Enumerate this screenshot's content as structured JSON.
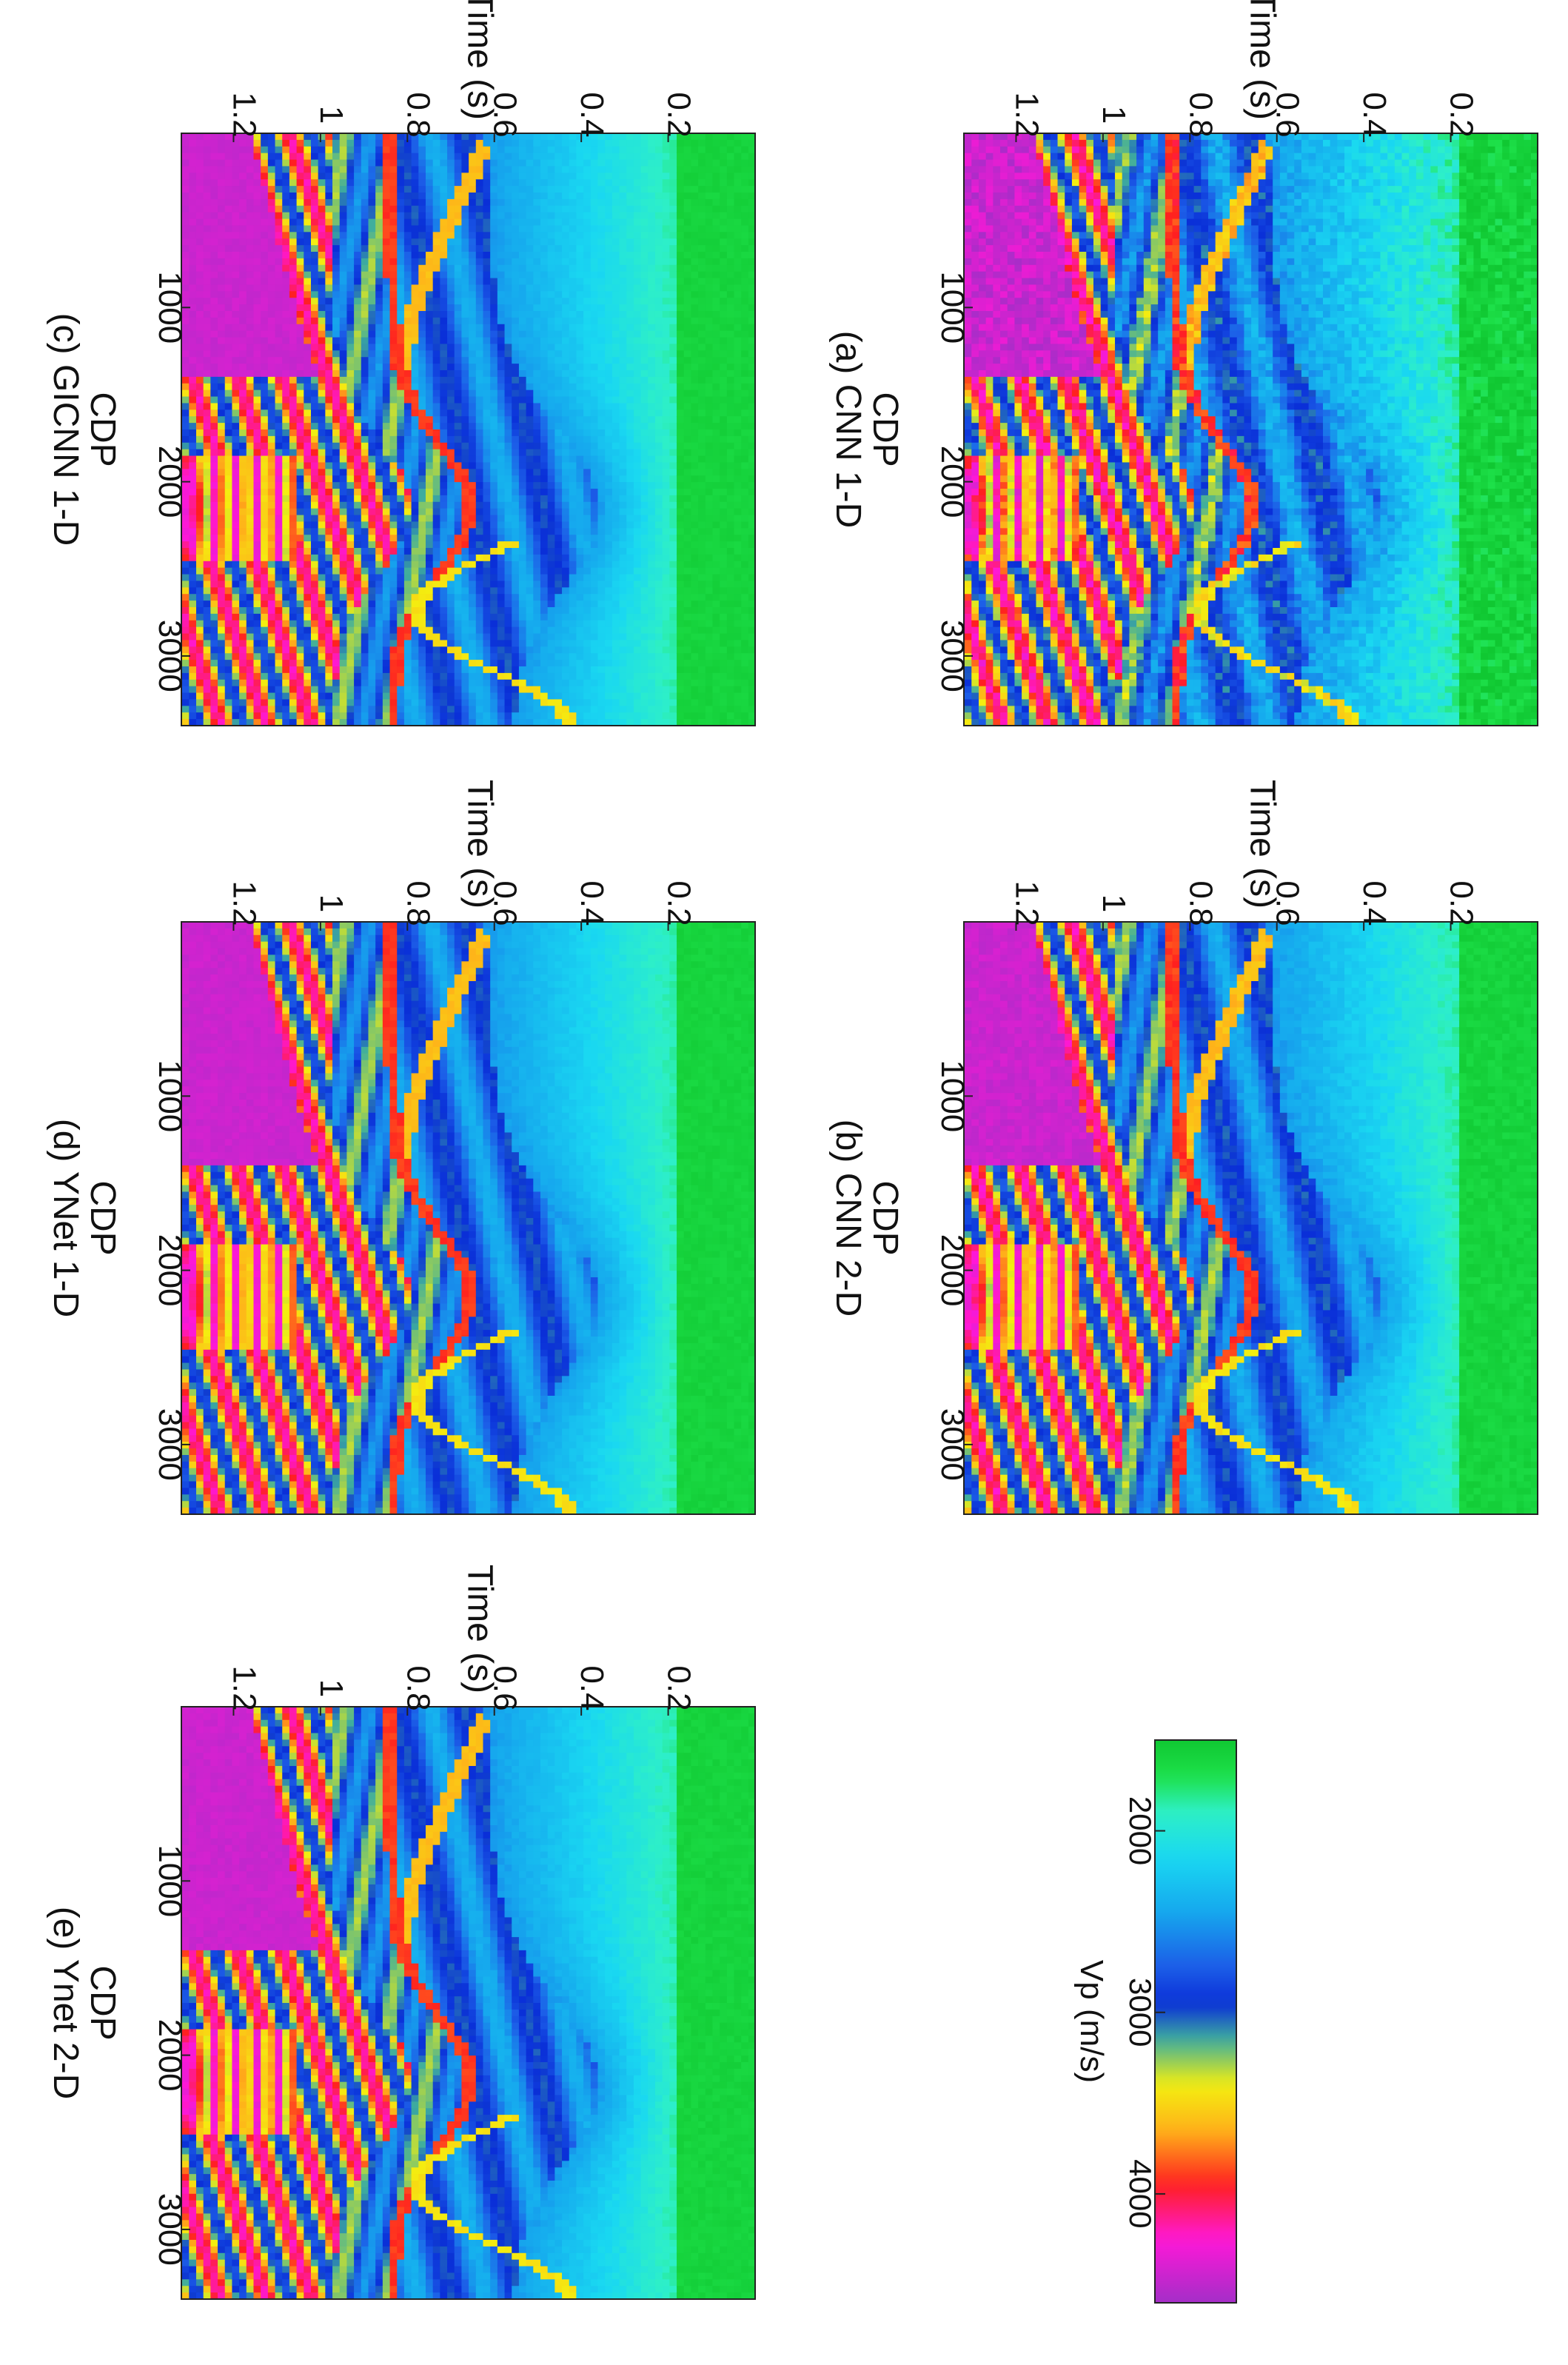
{
  "figure": {
    "orientation": "rotated 90 degrees clockwise",
    "colormap_name": "seismic velocity (green-cyan-blue-yellow-red-magenta)"
  },
  "chart_data": [
    {
      "type": "heatmap",
      "panel": "a",
      "title": "(a) CNN 1-D",
      "xlabel": "CDP",
      "ylabel": "Time (s)",
      "xticks": [
        "1000",
        "2000",
        "3000"
      ],
      "yticks": [
        "0.2",
        "0.4",
        "0.6",
        "0.8",
        "1",
        "1.2"
      ],
      "xlim": [
        1,
        3400
      ],
      "ylim": [
        0,
        1.32
      ],
      "z_units": "Vp (m/s)",
      "zlim": [
        1500,
        4600
      ],
      "style": "noisy"
    },
    {
      "type": "heatmap",
      "panel": "b",
      "title": "(b) CNN 2-D",
      "xlabel": "CDP",
      "ylabel": "Time (s)",
      "xticks": [
        "1000",
        "2000",
        "3000"
      ],
      "yticks": [
        "0.2",
        "0.4",
        "0.6",
        "0.8",
        "1",
        "1.2"
      ],
      "xlim": [
        1,
        3400
      ],
      "ylim": [
        0,
        1.32
      ],
      "z_units": "Vp (m/s)",
      "zlim": [
        1500,
        4600
      ],
      "style": "smooth"
    },
    {
      "type": "heatmap",
      "panel": "c",
      "title": "(c) GICNN 1-D",
      "xlabel": "CDP",
      "ylabel": "Time (s)",
      "xticks": [
        "1000",
        "2000",
        "3000"
      ],
      "yticks": [
        "0.2",
        "0.4",
        "0.6",
        "0.8",
        "1",
        "1.2"
      ],
      "xlim": [
        1,
        3400
      ],
      "ylim": [
        0,
        1.32
      ],
      "z_units": "Vp (m/s)",
      "zlim": [
        1500,
        4600
      ],
      "style": "clean"
    },
    {
      "type": "heatmap",
      "panel": "d",
      "title": "(d) YNet 1-D",
      "xlabel": "CDP",
      "ylabel": "Time (s)",
      "xticks": [
        "1000",
        "2000",
        "3000"
      ],
      "yticks": [
        "0.2",
        "0.4",
        "0.6",
        "0.8",
        "1",
        "1.2"
      ],
      "xlim": [
        1,
        3400
      ],
      "ylim": [
        0,
        1.32
      ],
      "z_units": "Vp (m/s)",
      "zlim": [
        1500,
        4600
      ],
      "style": "clean"
    },
    {
      "type": "heatmap",
      "panel": "e",
      "title": "(e) Ynet 2-D",
      "xlabel": "CDP",
      "ylabel": "Time (s)",
      "xticks": [
        "1000",
        "2000",
        "3000"
      ],
      "yticks": [
        "0.2",
        "0.4",
        "0.6",
        "0.8",
        "1",
        "1.2"
      ],
      "xlim": [
        1,
        3400
      ],
      "ylim": [
        0,
        1.32
      ],
      "z_units": "Vp (m/s)",
      "zlim": [
        1500,
        4600
      ],
      "style": "clean"
    }
  ],
  "colorbar": {
    "label": "Vp (m/s)",
    "ticks": [
      {
        "label": "2000",
        "value": 2000
      },
      {
        "label": "3000",
        "value": 3000
      },
      {
        "label": "4000",
        "value": 4000
      }
    ],
    "range": [
      1500,
      4600
    ],
    "stops": [
      {
        "v": 1500,
        "color": "#10c832"
      },
      {
        "v": 1700,
        "color": "#1ee14a"
      },
      {
        "v": 1900,
        "color": "#2ef0c8"
      },
      {
        "v": 2150,
        "color": "#1ad8f2"
      },
      {
        "v": 2450,
        "color": "#16a8ee"
      },
      {
        "v": 2750,
        "color": "#1d5ee8"
      },
      {
        "v": 2950,
        "color": "#0a2fd8"
      },
      {
        "v": 3150,
        "color": "#3fae9e"
      },
      {
        "v": 3400,
        "color": "#f4f010"
      },
      {
        "v": 3650,
        "color": "#ffb21a"
      },
      {
        "v": 3950,
        "color": "#ff2020"
      },
      {
        "v": 4250,
        "color": "#ff18d8"
      },
      {
        "v": 4600,
        "color": "#a52ec8"
      }
    ]
  }
}
